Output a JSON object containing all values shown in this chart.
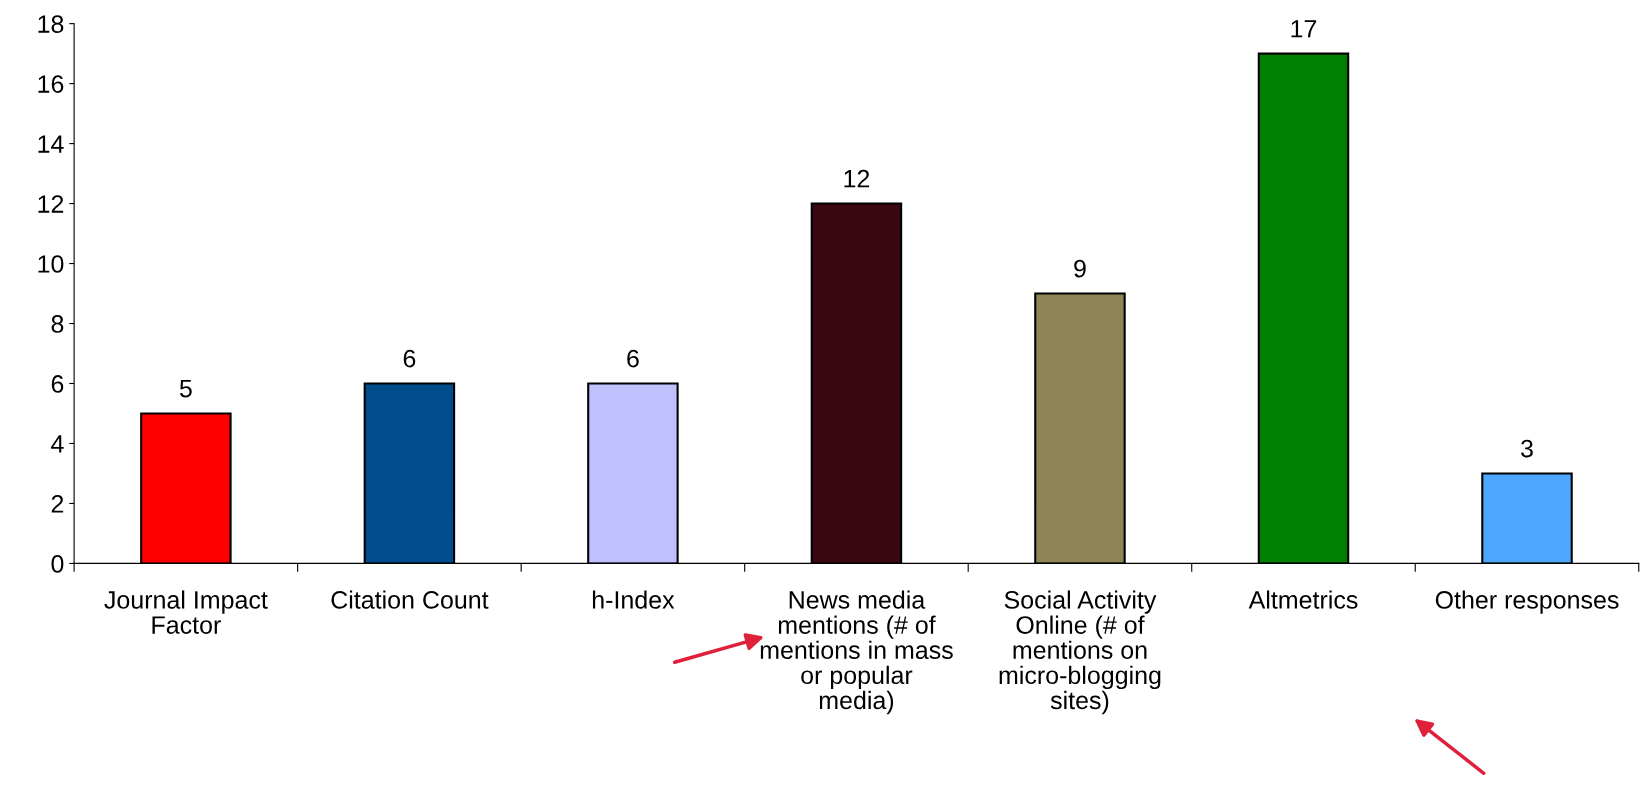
{
  "chart_data": {
    "type": "bar",
    "categories": [
      "Journal Impact Factor",
      "Citation Count",
      "h-Index",
      "News media mentions (# of mentions in mass or popular media)",
      "Social Activity Online (# of mentions on micro-blogging sites)",
      "Altmetrics",
      "Other responses"
    ],
    "values": [
      5,
      6,
      6,
      12,
      9,
      17,
      3
    ],
    "colors": [
      "#ff0000",
      "#004c8c",
      "#c0c0ff",
      "#3a0812",
      "#8f8455",
      "#008000",
      "#4da6ff"
    ],
    "ylim": [
      0,
      18
    ],
    "yticks": [
      0,
      2,
      4,
      6,
      8,
      10,
      12,
      14,
      16,
      18
    ],
    "data_labels": true,
    "grid": false
  }
}
